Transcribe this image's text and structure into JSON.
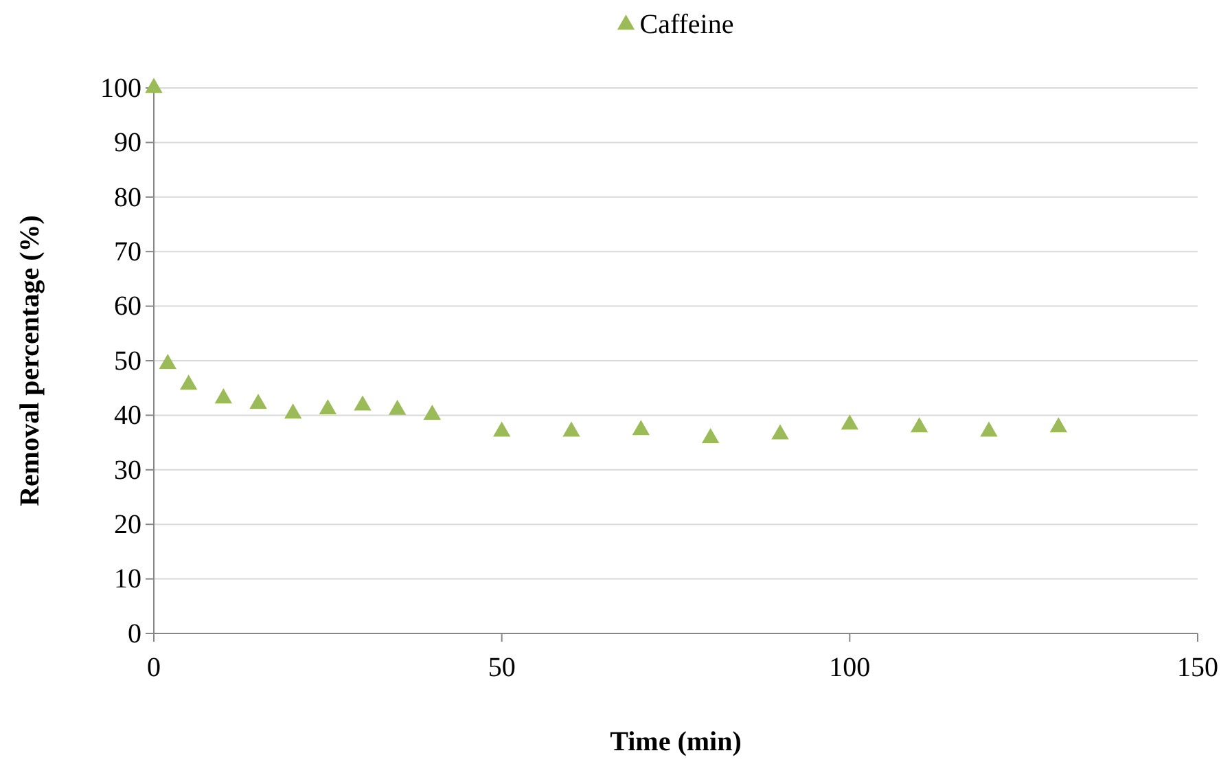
{
  "chart_data": {
    "type": "scatter",
    "xlabel": "Time (min)",
    "ylabel": "Removal percentage (%)",
    "x": [
      0,
      2,
      5,
      10,
      15,
      20,
      25,
      30,
      35,
      40,
      50,
      60,
      70,
      80,
      90,
      100,
      110,
      120,
      130
    ],
    "series": [
      {
        "name": "Caffeine",
        "color": "#9bbb59",
        "values": [
          100,
          49.4,
          45.6,
          43.1,
          42.1,
          40.3,
          41.1,
          41.8,
          41.0,
          40.1,
          37.0,
          37.0,
          37.3,
          35.8,
          36.5,
          38.3,
          37.8,
          37.0,
          37.8
        ]
      }
    ],
    "xlim": [
      0,
      150
    ],
    "xticks": [
      0,
      50,
      100,
      150
    ],
    "ylim": [
      0,
      100
    ],
    "yticks": [
      0,
      10,
      20,
      30,
      40,
      50,
      60,
      70,
      80,
      90,
      100
    ],
    "grid": "y",
    "legend": "top",
    "marker": "triangle"
  }
}
